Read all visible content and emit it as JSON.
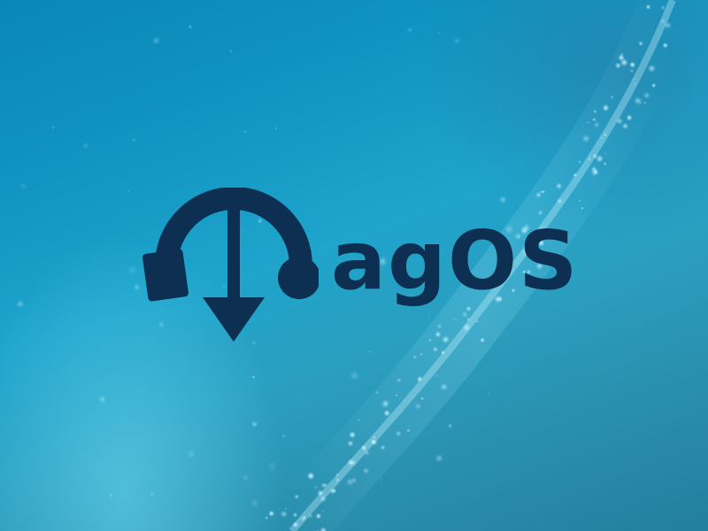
{
  "desktop": {
    "wallpaper": {
      "brand_text": "agOS",
      "logo_icon": "download-arrow-headphones-icon"
    }
  },
  "colors": {
    "logo": "#0d2f52",
    "background_top": "#0a87b8",
    "background_bottom": "#237f9e",
    "sparkle": "#cdf6ff"
  }
}
